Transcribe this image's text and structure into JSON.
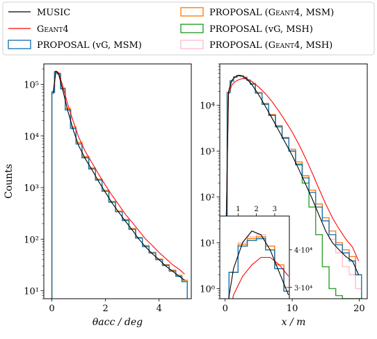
{
  "chart_data": [
    {
      "type": "step-histogram",
      "xlabel": "θacc / deg",
      "ylabel": "Counts",
      "y_scale": "log",
      "xlim": [
        -0.3,
        5.2
      ],
      "ylim": [
        7,
        250000
      ],
      "xticks": [
        "0",
        "2",
        "4"
      ],
      "yticks": [
        "10¹",
        "10²",
        "10³",
        "10⁴",
        "10⁵"
      ],
      "x": [
        0.05,
        0.15,
        0.25,
        0.4,
        0.6,
        0.8,
        1.0,
        1.25,
        1.5,
        1.75,
        2.0,
        2.25,
        2.5,
        2.75,
        3.0,
        3.25,
        3.5,
        3.75,
        4.0,
        4.25,
        4.5,
        4.75,
        4.95
      ],
      "series": [
        {
          "name": "MUSIC",
          "color": "#000000",
          "values": [
            70000,
            180000,
            160000,
            80000,
            30000,
            13000,
            6500,
            3600,
            2200,
            1300,
            800,
            500,
            330,
            220,
            150,
            100,
            70,
            52,
            40,
            30,
            24,
            19,
            16
          ]
        },
        {
          "name": "Geant4",
          "color": "#ff0000",
          "values": [
            65000,
            180000,
            170000,
            95000,
            40000,
            19000,
            9500,
            5000,
            3000,
            1800,
            1100,
            700,
            460,
            300,
            210,
            145,
            100,
            75,
            55,
            42,
            32,
            26,
            21
          ]
        },
        {
          "name": "PROPOSAL (vG, MSM)",
          "color": "#1f77b4",
          "values": [
            70000,
            175000,
            160000,
            82000,
            32000,
            14000,
            7000,
            3800,
            2300,
            1400,
            850,
            520,
            340,
            230,
            155,
            105,
            72,
            54,
            40,
            31,
            24,
            19,
            15
          ]
        },
        {
          "name": "PROPOSAL (Geant4, MSM)",
          "color": "#ff7f0e",
          "values": [
            72000,
            178000,
            165000,
            85000,
            34000,
            15000,
            7500,
            4000,
            2400,
            1450,
            880,
            540,
            350,
            240,
            160,
            108,
            75,
            55,
            41,
            32,
            25,
            20,
            16
          ]
        },
        {
          "name": "PROPOSAL (vG, MSH)",
          "color": "#2ca02c",
          "values": [
            70000,
            175000,
            160000,
            82000,
            32000,
            14000,
            7000,
            3800,
            2300,
            1400,
            850,
            520,
            340,
            230,
            155,
            105,
            72,
            54,
            40,
            31,
            24,
            19,
            15
          ]
        },
        {
          "name": "PROPOSAL (Geant4, MSH)",
          "color": "#ffc0cb",
          "values": [
            72000,
            178000,
            165000,
            85000,
            34000,
            15000,
            7500,
            4000,
            2400,
            1450,
            880,
            540,
            350,
            240,
            160,
            108,
            75,
            55,
            41,
            32,
            25,
            20,
            16
          ]
        }
      ]
    },
    {
      "type": "step-histogram",
      "xlabel": "x / m",
      "y_scale": "log",
      "xlim": [
        -0.8,
        21.2
      ],
      "ylim": [
        0.6,
        80000
      ],
      "xticks": [
        "0",
        "10",
        "20"
      ],
      "yticks": [
        "10⁰",
        "10¹",
        "10²",
        "10³",
        "10⁴"
      ],
      "x": [
        0.1,
        0.5,
        1,
        1.5,
        2,
        2.5,
        3,
        3.5,
        4,
        5,
        6,
        7,
        8,
        9,
        10,
        11,
        12,
        13,
        14,
        15,
        16,
        17,
        18,
        19,
        19.9
      ],
      "series": [
        {
          "name": "MUSIC",
          "color": "#000000",
          "values": [
            10,
            20000,
            35000,
            42000,
            45000,
            44000,
            40000,
            34000,
            28000,
            17000,
            9500,
            5200,
            2800,
            1500,
            800,
            400,
            190,
            90,
            40,
            18,
            10,
            7,
            5,
            4,
            2
          ]
        },
        {
          "name": "Geant4",
          "color": "#ff0000",
          "values": [
            10,
            17000,
            28000,
            33000,
            36000,
            38000,
            38000,
            36000,
            33000,
            25000,
            18000,
            12000,
            7500,
            4500,
            2600,
            1400,
            700,
            330,
            150,
            70,
            35,
            20,
            12,
            8,
            4
          ]
        },
        {
          "name": "PROPOSAL (vG, MSM)",
          "color": "#1f77b4",
          "values": [
            10,
            19000,
            34000,
            41000,
            44000,
            43000,
            40000,
            35000,
            29000,
            18500,
            10500,
            6000,
            3400,
            1900,
            1000,
            520,
            260,
            125,
            60,
            30,
            15,
            9,
            6,
            4,
            2
          ]
        },
        {
          "name": "PROPOSAL (Geant4, MSM)",
          "color": "#ff7f0e",
          "values": [
            10,
            19000,
            34000,
            42000,
            45000,
            44000,
            41000,
            36000,
            30000,
            19000,
            11000,
            6300,
            3600,
            2000,
            1100,
            580,
            290,
            140,
            70,
            35,
            18,
            10,
            7,
            5,
            2
          ]
        },
        {
          "name": "PROPOSAL (vG, MSH)",
          "color": "#2ca02c",
          "values": [
            10,
            19000,
            34000,
            41000,
            44000,
            43000,
            40000,
            35000,
            29000,
            18500,
            10500,
            6000,
            3400,
            1900,
            1000,
            500,
            200,
            60,
            15,
            3,
            1,
            0.7,
            0.6,
            0.6,
            0.6
          ]
        },
        {
          "name": "PROPOSAL (Geant4, MSH)",
          "color": "#ffc0cb",
          "values": [
            10,
            19000,
            34000,
            42000,
            45000,
            44000,
            41000,
            36000,
            30000,
            19000,
            11000,
            6300,
            3600,
            2000,
            1100,
            580,
            290,
            140,
            70,
            30,
            12,
            6,
            3,
            2,
            1
          ]
        }
      ]
    },
    {
      "type": "step-histogram",
      "inset": true,
      "y_scale": "linear",
      "xlim": [
        0,
        3.8
      ],
      "ylim": [
        27000,
        49000
      ],
      "xticks": [
        "1",
        "2",
        "3"
      ],
      "yticks": [
        "3·10⁴",
        "4·10⁴"
      ],
      "x": [
        0.25,
        0.75,
        1.25,
        1.75,
        2.25,
        2.75,
        3.25,
        3.75
      ],
      "series": [
        {
          "name": "MUSIC",
          "color": "#000000",
          "values": [
            20000,
            35000,
            42000,
            45000,
            44000,
            40000,
            34000,
            28000
          ]
        },
        {
          "name": "Geant4",
          "color": "#ff0000",
          "values": [
            17000,
            28000,
            33000,
            36000,
            38000,
            38000,
            36000,
            33000
          ]
        },
        {
          "name": "PROPOSAL (vG, MSM)",
          "color": "#1f77b4",
          "values": [
            19000,
            34000,
            41000,
            42500,
            43000,
            40000,
            35000,
            29000
          ]
        },
        {
          "name": "PROPOSAL (Geant4, MSM)",
          "color": "#ff7f0e",
          "values": [
            19000,
            34000,
            41500,
            43000,
            43500,
            41000,
            36000,
            30000
          ]
        },
        {
          "name": "PROPOSAL (vG, MSH)",
          "color": "#2ca02c",
          "values": [
            19000,
            34000,
            41000,
            42500,
            43000,
            40000,
            35000,
            29000
          ]
        },
        {
          "name": "PROPOSAL (Geant4, MSH)",
          "color": "#ffc0cb",
          "values": [
            19000,
            34000,
            42000,
            43500,
            44000,
            41000,
            36000,
            30000
          ]
        }
      ]
    }
  ],
  "legend": [
    {
      "text": "MUSIC",
      "color": "#000000",
      "kind": "line",
      "smallcaps": false
    },
    {
      "text": "PROPOSAL (Geant4, MSM)",
      "color": "#ff7f0e",
      "kind": "patch",
      "smallcaps": true
    },
    {
      "text": "Geant4",
      "color": "#ff0000",
      "kind": "line",
      "smallcaps": true
    },
    {
      "text": "PROPOSAL (vG, MSH)",
      "color": "#2ca02c",
      "kind": "patch",
      "smallcaps": false
    },
    {
      "text": "PROPOSAL (vG, MSM)",
      "color": "#1f77b4",
      "kind": "patch",
      "smallcaps": false
    },
    {
      "text": "PROPOSAL (Geant4, MSH)",
      "color": "#ffc0cb",
      "kind": "patch",
      "smallcaps": true
    }
  ]
}
